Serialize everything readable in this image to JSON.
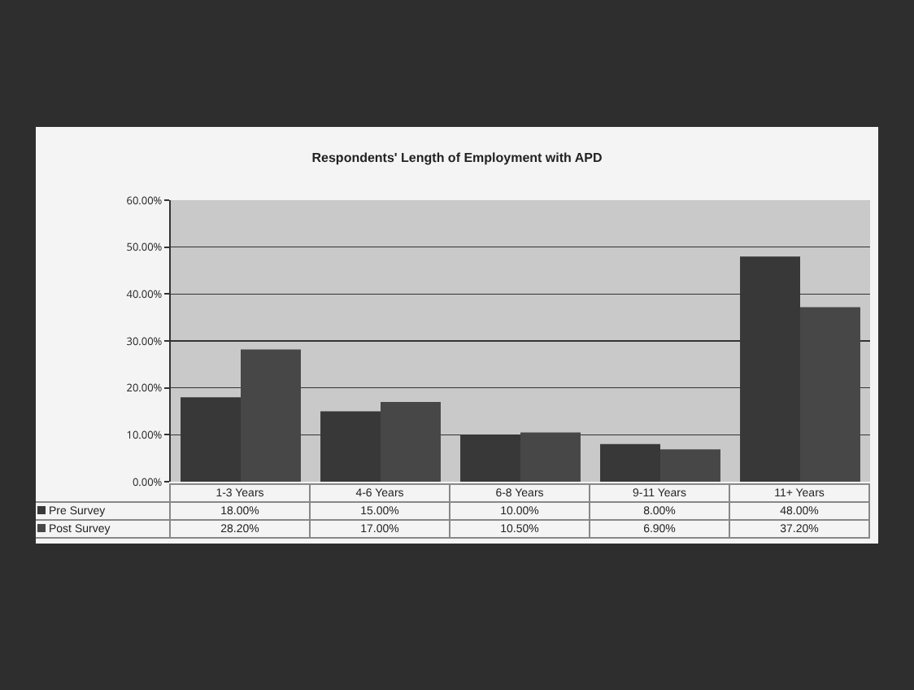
{
  "chart_data": {
    "type": "bar",
    "title": "Respondents' Length of Employment with APD",
    "categories": [
      "1-3 Years",
      "4-6 Years",
      "6-8 Years",
      "9-11 Years",
      "11+ Years"
    ],
    "series": [
      {
        "name": "Pre Survey",
        "color": "#383838",
        "values": [
          18,
          15,
          10,
          8,
          48
        ],
        "value_labels": [
          "18.00%",
          "15.00%",
          "10.00%",
          "8.00%",
          "48.00%"
        ]
      },
      {
        "name": "Post Survey",
        "color": "#474747",
        "values": [
          28.2,
          17,
          10.5,
          6.9,
          37.2
        ],
        "value_labels": [
          "28.20%",
          "17.00%",
          "10.50%",
          "6.90%",
          "37.20%"
        ]
      }
    ],
    "ylim": [
      0,
      60
    ],
    "yticks": [
      {
        "value": 0,
        "label": "0.00%"
      },
      {
        "value": 10,
        "label": "10.00%"
      },
      {
        "value": 20,
        "label": "20.00%"
      },
      {
        "value": 30,
        "label": "30.00%"
      },
      {
        "value": 40,
        "label": "40.00%"
      },
      {
        "value": 50,
        "label": "50.00%"
      },
      {
        "value": 60,
        "label": "60.00%"
      }
    ],
    "grid": "y",
    "legend": "bottom left"
  }
}
